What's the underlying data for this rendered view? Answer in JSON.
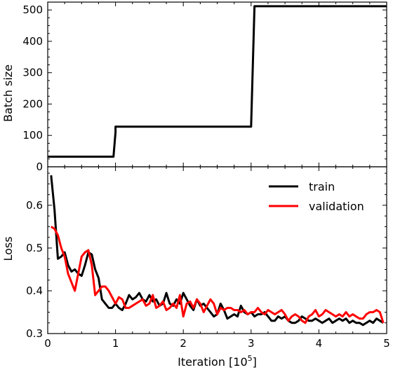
{
  "chart_data": [
    {
      "type": "line",
      "panel": "top",
      "xlabel": "",
      "ylabel": "Batch size",
      "xlim": [
        0,
        5
      ],
      "ylim": [
        0,
        525
      ],
      "yticks": [
        0,
        100,
        200,
        300,
        400,
        500
      ],
      "ytick_labels": [
        "0",
        "100",
        "200",
        "300",
        "400",
        "500"
      ],
      "grid": false,
      "series": [
        {
          "color": "#000000",
          "x": [
            0,
            0.97,
            1.0,
            1.0,
            3.0,
            3.05,
            5.0
          ],
          "y": [
            32,
            32,
            110,
            128,
            128,
            512,
            512
          ]
        }
      ]
    },
    {
      "type": "line",
      "panel": "bottom",
      "xlabel": "Iteration [10⁵]",
      "ylabel": "Loss",
      "xlim": [
        0,
        5
      ],
      "ylim": [
        0.3,
        0.69
      ],
      "xticks": [
        0,
        1,
        2,
        3,
        4,
        5
      ],
      "xtick_labels": [
        "0",
        "1",
        "2",
        "3",
        "4",
        "5"
      ],
      "yticks": [
        0.3,
        0.4,
        0.5,
        0.6
      ],
      "ytick_labels": [
        "0.3",
        "0.4",
        "0.5",
        "0.6"
      ],
      "grid": false,
      "legend_position": "top-right",
      "series": [
        {
          "name": "train",
          "color": "#000000",
          "x": [
            0.05,
            0.1,
            0.15,
            0.2,
            0.25,
            0.3,
            0.35,
            0.4,
            0.45,
            0.5,
            0.55,
            0.6,
            0.65,
            0.7,
            0.75,
            0.8,
            0.85,
            0.9,
            0.95,
            1.0,
            1.05,
            1.1,
            1.15,
            1.2,
            1.25,
            1.3,
            1.35,
            1.4,
            1.45,
            1.5,
            1.55,
            1.6,
            1.65,
            1.7,
            1.75,
            1.8,
            1.85,
            1.9,
            1.95,
            2.0,
            2.05,
            2.1,
            2.15,
            2.2,
            2.25,
            2.3,
            2.35,
            2.4,
            2.45,
            2.5,
            2.55,
            2.6,
            2.65,
            2.7,
            2.75,
            2.8,
            2.85,
            2.9,
            2.95,
            3.0,
            3.05,
            3.1,
            3.15,
            3.2,
            3.25,
            3.3,
            3.35,
            3.4,
            3.45,
            3.5,
            3.55,
            3.6,
            3.65,
            3.7,
            3.75,
            3.8,
            3.85,
            3.9,
            3.95,
            4.0,
            4.05,
            4.1,
            4.15,
            4.2,
            4.25,
            4.3,
            4.35,
            4.4,
            4.45,
            4.5,
            4.55,
            4.6,
            4.65,
            4.7,
            4.75,
            4.8,
            4.85,
            4.9,
            4.95
          ],
          "y": [
            0.67,
            0.59,
            0.475,
            0.48,
            0.49,
            0.46,
            0.445,
            0.45,
            0.44,
            0.435,
            0.46,
            0.49,
            0.485,
            0.45,
            0.43,
            0.38,
            0.37,
            0.36,
            0.36,
            0.37,
            0.36,
            0.355,
            0.37,
            0.39,
            0.38,
            0.385,
            0.395,
            0.38,
            0.375,
            0.39,
            0.375,
            0.38,
            0.365,
            0.37,
            0.395,
            0.37,
            0.365,
            0.38,
            0.37,
            0.395,
            0.38,
            0.365,
            0.355,
            0.38,
            0.365,
            0.37,
            0.36,
            0.35,
            0.34,
            0.345,
            0.37,
            0.355,
            0.335,
            0.34,
            0.345,
            0.34,
            0.365,
            0.35,
            0.345,
            0.35,
            0.34,
            0.345,
            0.345,
            0.35,
            0.34,
            0.33,
            0.33,
            0.34,
            0.335,
            0.34,
            0.33,
            0.325,
            0.325,
            0.33,
            0.34,
            0.335,
            0.33,
            0.33,
            0.335,
            0.33,
            0.325,
            0.33,
            0.335,
            0.325,
            0.33,
            0.335,
            0.33,
            0.335,
            0.325,
            0.33,
            0.325,
            0.325,
            0.32,
            0.325,
            0.33,
            0.325,
            0.335,
            0.33,
            0.325
          ]
        },
        {
          "name": "validation",
          "color": "#ff0000",
          "x": [
            0.05,
            0.1,
            0.15,
            0.2,
            0.25,
            0.3,
            0.35,
            0.4,
            0.45,
            0.5,
            0.55,
            0.6,
            0.65,
            0.7,
            0.75,
            0.8,
            0.85,
            0.9,
            0.95,
            1.0,
            1.05,
            1.1,
            1.15,
            1.2,
            1.25,
            1.3,
            1.35,
            1.4,
            1.45,
            1.5,
            1.55,
            1.6,
            1.65,
            1.7,
            1.75,
            1.8,
            1.85,
            1.9,
            1.95,
            2.0,
            2.05,
            2.1,
            2.15,
            2.2,
            2.25,
            2.3,
            2.35,
            2.4,
            2.45,
            2.5,
            2.55,
            2.6,
            2.65,
            2.7,
            2.75,
            2.8,
            2.85,
            2.9,
            2.95,
            3.0,
            3.05,
            3.1,
            3.15,
            3.2,
            3.25,
            3.3,
            3.35,
            3.4,
            3.45,
            3.5,
            3.55,
            3.6,
            3.65,
            3.7,
            3.75,
            3.8,
            3.85,
            3.9,
            3.95,
            4.0,
            4.05,
            4.1,
            4.15,
            4.2,
            4.25,
            4.3,
            4.35,
            4.4,
            4.45,
            4.5,
            4.55,
            4.6,
            4.65,
            4.7,
            4.75,
            4.8,
            4.85,
            4.9,
            4.95
          ],
          "y": [
            0.55,
            0.545,
            0.53,
            0.5,
            0.48,
            0.44,
            0.42,
            0.4,
            0.44,
            0.48,
            0.49,
            0.495,
            0.46,
            0.39,
            0.4,
            0.41,
            0.41,
            0.4,
            0.385,
            0.37,
            0.385,
            0.38,
            0.36,
            0.36,
            0.365,
            0.37,
            0.375,
            0.38,
            0.365,
            0.37,
            0.39,
            0.36,
            0.365,
            0.375,
            0.355,
            0.36,
            0.37,
            0.36,
            0.39,
            0.34,
            0.37,
            0.375,
            0.36,
            0.38,
            0.37,
            0.35,
            0.365,
            0.38,
            0.37,
            0.345,
            0.36,
            0.355,
            0.36,
            0.36,
            0.355,
            0.355,
            0.35,
            0.355,
            0.345,
            0.35,
            0.35,
            0.36,
            0.35,
            0.345,
            0.355,
            0.35,
            0.345,
            0.35,
            0.355,
            0.345,
            0.33,
            0.34,
            0.345,
            0.34,
            0.33,
            0.325,
            0.34,
            0.345,
            0.355,
            0.34,
            0.345,
            0.355,
            0.35,
            0.345,
            0.34,
            0.345,
            0.34,
            0.35,
            0.34,
            0.345,
            0.34,
            0.335,
            0.335,
            0.345,
            0.35,
            0.35,
            0.355,
            0.35,
            0.325
          ]
        }
      ]
    }
  ]
}
